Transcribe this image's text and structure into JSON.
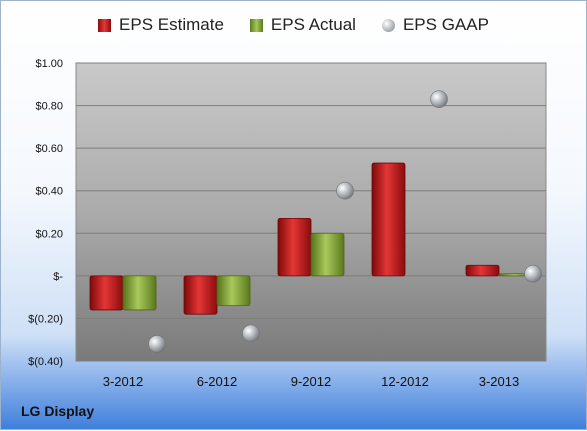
{
  "company": "LG Display",
  "chart_data": {
    "type": "bar",
    "categories": [
      "3-2012",
      "6-2012",
      "9-2012",
      "12-2012",
      "3-2013"
    ],
    "series": [
      {
        "name": "EPS Estimate",
        "kind": "bar",
        "color": "#cc2020",
        "values": [
          -0.16,
          -0.18,
          0.27,
          0.53,
          0.05
        ]
      },
      {
        "name": "EPS Actual",
        "kind": "bar",
        "color": "#8aab3c",
        "values": [
          -0.16,
          -0.14,
          0.2,
          null,
          0.01
        ]
      },
      {
        "name": "EPS GAAP",
        "kind": "scatter",
        "color": "#a9acb0",
        "values": [
          -0.32,
          -0.27,
          0.4,
          0.83,
          0.01
        ]
      }
    ],
    "y_ticks": [
      {
        "value": 1.0,
        "label": "$1.00"
      },
      {
        "value": 0.8,
        "label": "$0.80"
      },
      {
        "value": 0.6,
        "label": "$0.60"
      },
      {
        "value": 0.4,
        "label": "$0.40"
      },
      {
        "value": 0.2,
        "label": "$0.20"
      },
      {
        "value": 0.0,
        "label": "$-"
      },
      {
        "value": -0.2,
        "label": "$(0.20)"
      },
      {
        "value": -0.4,
        "label": "$(0.40)"
      }
    ],
    "ylim": [
      -0.4,
      1.0
    ],
    "grid": true,
    "legend_position": "top"
  }
}
